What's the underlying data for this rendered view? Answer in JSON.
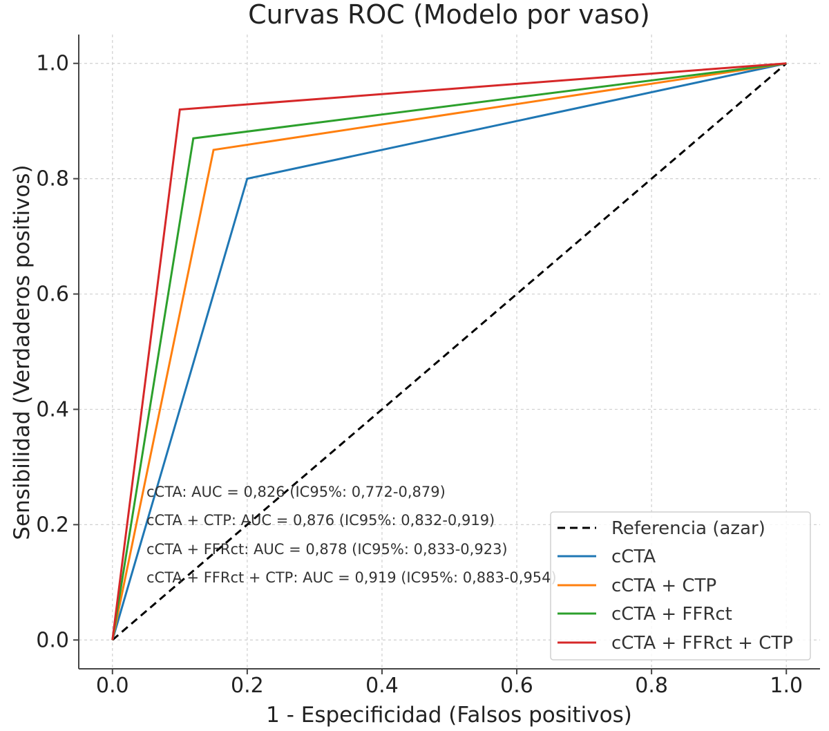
{
  "chart_data": {
    "type": "line",
    "title": "Curvas ROC (Modelo por vaso)",
    "xlabel": "1 - Especificidad (Falsos positivos)",
    "ylabel": "Sensibilidad (Verdaderos positivos)",
    "xlim": [
      -0.05,
      1.05
    ],
    "ylim": [
      -0.05,
      1.05
    ],
    "xticks": [
      0.0,
      0.2,
      0.4,
      0.6,
      0.8,
      1.0
    ],
    "yticks": [
      0.0,
      0.2,
      0.4,
      0.6,
      0.8,
      1.0
    ],
    "tick_labels": [
      "0.0",
      "0.2",
      "0.4",
      "0.6",
      "0.8",
      "1.0"
    ],
    "grid": true,
    "legend_position": "bottom-right",
    "reference": {
      "name": "Referencia (azar)",
      "color": "#000000",
      "style": "dashed",
      "x": [
        0,
        1
      ],
      "y": [
        0,
        1
      ]
    },
    "series": [
      {
        "name": "cCTA",
        "color": "#1f77b4",
        "x": [
          0,
          0.2,
          1
        ],
        "y": [
          0,
          0.8,
          1
        ]
      },
      {
        "name": "cCTA + CTP",
        "color": "#ff7f0e",
        "x": [
          0,
          0.15,
          1
        ],
        "y": [
          0,
          0.85,
          1
        ]
      },
      {
        "name": "cCTA + FFRct",
        "color": "#2ca02c",
        "x": [
          0,
          0.12,
          1
        ],
        "y": [
          0,
          0.87,
          1
        ]
      },
      {
        "name": "cCTA + FFRct + CTP",
        "color": "#d62728",
        "x": [
          0,
          0.1,
          1
        ],
        "y": [
          0,
          0.92,
          1
        ]
      }
    ],
    "annotations": [
      "cCTA: AUC = 0,826 (IC95%: 0,772-0,879)",
      "cCTA + CTP: AUC = 0,876 (IC95%: 0,832-0,919)",
      "cCTA + FFRct: AUC = 0,878 (IC95%: 0,833-0,923)",
      "cCTA + FFRct + CTP: AUC = 0,919 (IC95%: 0,883-0,954)"
    ]
  }
}
